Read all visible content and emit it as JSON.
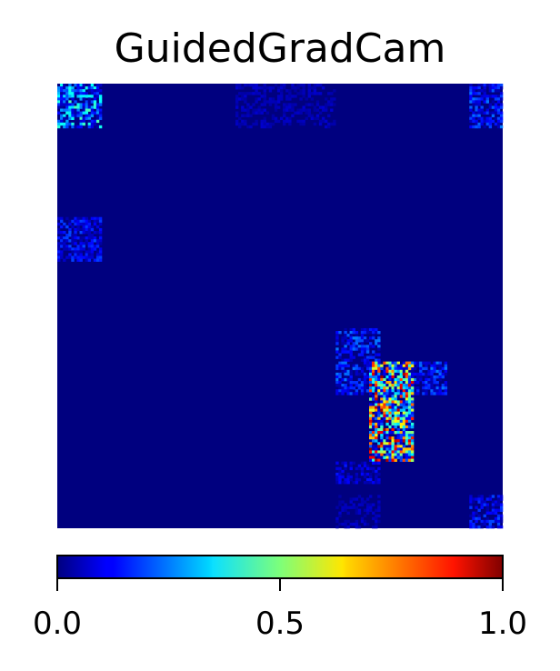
{
  "chart_data": {
    "type": "heatmap",
    "title": "GuidedGradCam",
    "xlabel": "",
    "ylabel": "",
    "colormap": "jet",
    "grid_size": [
      40,
      40
    ],
    "value_range": [
      0,
      1
    ],
    "colorbar": {
      "orientation": "horizontal",
      "placement": "bottom",
      "ticks": [
        0.0,
        0.5,
        1.0
      ],
      "tick_labels": [
        "0.0",
        "0.5",
        "1.0"
      ]
    },
    "regions": [
      {
        "rows": [
          0,
          3
        ],
        "cols": [
          0,
          3
        ],
        "level": "low-medium",
        "max": 0.45
      },
      {
        "rows": [
          0,
          3
        ],
        "cols": [
          16,
          24
        ],
        "level": "very-low",
        "max": 0.08
      },
      {
        "rows": [
          0,
          3
        ],
        "cols": [
          37,
          39
        ],
        "level": "low",
        "max": 0.25
      },
      {
        "rows": [
          12,
          15
        ],
        "cols": [
          0,
          3
        ],
        "level": "low",
        "max": 0.2
      },
      {
        "rows": [
          22,
          27
        ],
        "cols": [
          25,
          28
        ],
        "level": "low",
        "max": 0.25
      },
      {
        "rows": [
          25,
          27
        ],
        "cols": [
          31,
          34
        ],
        "level": "low",
        "max": 0.25
      },
      {
        "rows": [
          25,
          33
        ],
        "cols": [
          28,
          31
        ],
        "level": "high",
        "max": 0.95
      },
      {
        "rows": [
          34,
          35
        ],
        "cols": [
          25,
          28
        ],
        "level": "low",
        "max": 0.15
      },
      {
        "rows": [
          37,
          39
        ],
        "cols": [
          37,
          39
        ],
        "level": "low",
        "max": 0.2
      },
      {
        "rows": [
          37,
          39
        ],
        "cols": [
          25,
          28
        ],
        "level": "very-low",
        "max": 0.08
      }
    ]
  }
}
